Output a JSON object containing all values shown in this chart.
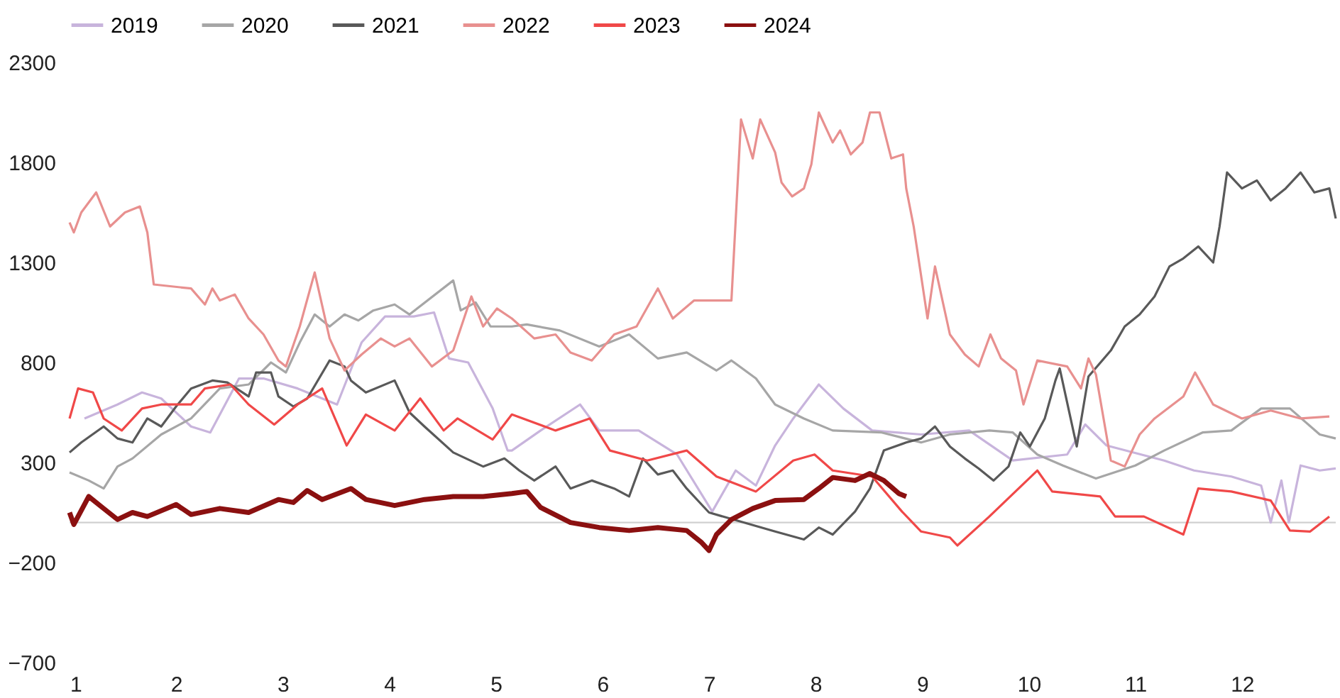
{
  "chart_data": {
    "type": "line",
    "xlim": [
      1,
      12.88
    ],
    "xticks": [
      1,
      2,
      3,
      4,
      5,
      6,
      7,
      8,
      9,
      10,
      11,
      12
    ],
    "ylim": [
      -700,
      2300
    ],
    "yticks": [
      -700,
      -200,
      300,
      800,
      1300,
      1800,
      2300
    ],
    "grid": false,
    "legend": "top",
    "line_style": "solid",
    "marker": "none",
    "ref_lines": [
      {
        "axis": "y",
        "value": 0,
        "color": "#d0d0d0"
      }
    ],
    "series": [
      {
        "name": "2019",
        "color": "#c8b4dc",
        "x": [
          1.14,
          1.45,
          1.68,
          1.86,
          2.14,
          2.32,
          2.59,
          2.82,
          3.14,
          3.51,
          3.74,
          3.96,
          4.23,
          4.42,
          4.56,
          4.74,
          4.97,
          5.11,
          5.15,
          5.42,
          5.79,
          5.97,
          6.34,
          6.7,
          7.03,
          7.25,
          7.44,
          7.62,
          7.79,
          8.03,
          8.26,
          8.53,
          8.99,
          9.44,
          9.85,
          10.36,
          10.53,
          10.73,
          11.27,
          11.55,
          11.9,
          12.18,
          12.27,
          12.37,
          12.44,
          12.55,
          12.73,
          12.88
        ],
        "values": [
          520,
          590,
          650,
          620,
          480,
          450,
          720,
          720,
          670,
          590,
          900,
          1030,
          1030,
          1050,
          820,
          800,
          570,
          360,
          360,
          460,
          590,
          460,
          460,
          340,
          55,
          260,
          185,
          385,
          520,
          690,
          570,
          460,
          440,
          460,
          310,
          340,
          490,
          385,
          310,
          260,
          230,
          185,
          0,
          210,
          0,
          285,
          260,
          270
        ]
      },
      {
        "name": "2020",
        "color": "#a6a6a6",
        "x": [
          1.0,
          1.18,
          1.32,
          1.45,
          1.59,
          1.86,
          2.14,
          2.41,
          2.68,
          2.89,
          3.03,
          3.16,
          3.3,
          3.44,
          3.58,
          3.71,
          3.85,
          4.05,
          4.19,
          4.6,
          4.67,
          4.81,
          4.95,
          5.15,
          5.29,
          5.6,
          5.97,
          6.25,
          6.52,
          6.79,
          7.07,
          7.21,
          7.44,
          7.62,
          7.89,
          8.16,
          8.62,
          8.99,
          9.26,
          9.63,
          9.85,
          10.08,
          10.32,
          10.63,
          11.0,
          11.27,
          11.63,
          11.9,
          12.18,
          12.45,
          12.73,
          12.88
        ],
        "values": [
          250,
          210,
          170,
          280,
          320,
          440,
          520,
          670,
          690,
          800,
          750,
          900,
          1040,
          980,
          1040,
          1010,
          1060,
          1090,
          1040,
          1210,
          1060,
          1100,
          980,
          980,
          990,
          960,
          880,
          940,
          820,
          850,
          760,
          810,
          720,
          590,
          520,
          460,
          450,
          400,
          440,
          460,
          450,
          340,
          285,
          220,
          285,
          360,
          450,
          460,
          570,
          570,
          440,
          420
        ]
      },
      {
        "name": "2021",
        "color": "#595959",
        "x": [
          1.0,
          1.11,
          1.32,
          1.45,
          1.59,
          1.73,
          1.86,
          2.0,
          2.14,
          2.34,
          2.48,
          2.68,
          2.75,
          2.89,
          2.96,
          3.1,
          3.23,
          3.44,
          3.58,
          3.64,
          3.78,
          4.05,
          4.19,
          4.33,
          4.6,
          4.88,
          5.08,
          5.22,
          5.36,
          5.56,
          5.7,
          5.9,
          6.11,
          6.25,
          6.38,
          6.52,
          6.66,
          6.79,
          6.93,
          7.0,
          7.62,
          7.89,
          8.03,
          8.16,
          8.37,
          8.51,
          8.64,
          8.85,
          8.99,
          9.12,
          9.26,
          9.4,
          9.53,
          9.67,
          9.81,
          9.92,
          10.01,
          10.15,
          10.25,
          10.29,
          10.45,
          10.56,
          10.77,
          10.9,
          11.04,
          11.18,
          11.32,
          11.45,
          11.59,
          11.73,
          11.79,
          11.86,
          12.0,
          12.14,
          12.27,
          12.41,
          12.55,
          12.68,
          12.82,
          12.88
        ],
        "values": [
          350,
          400,
          480,
          420,
          400,
          520,
          480,
          580,
          670,
          710,
          700,
          630,
          750,
          750,
          630,
          580,
          620,
          810,
          780,
          710,
          650,
          710,
          550,
          480,
          350,
          280,
          320,
          260,
          210,
          280,
          170,
          210,
          170,
          130,
          320,
          240,
          260,
          170,
          90,
          50,
          -45,
          -85,
          -25,
          -60,
          55,
          170,
          360,
          400,
          420,
          480,
          380,
          320,
          270,
          210,
          280,
          450,
          380,
          520,
          710,
          770,
          380,
          730,
          860,
          980,
          1040,
          1130,
          1280,
          1320,
          1380,
          1300,
          1480,
          1750,
          1670,
          1710,
          1610,
          1670,
          1750,
          1650,
          1670,
          1520
        ]
      },
      {
        "name": "2022",
        "color": "#e8908f",
        "x": [
          1.0,
          1.04,
          1.11,
          1.25,
          1.38,
          1.52,
          1.66,
          1.73,
          1.79,
          2.14,
          2.27,
          2.34,
          2.41,
          2.55,
          2.68,
          2.82,
          2.96,
          3.03,
          3.16,
          3.3,
          3.44,
          3.58,
          3.74,
          3.92,
          4.05,
          4.19,
          4.4,
          4.6,
          4.77,
          4.88,
          5.01,
          5.15,
          5.36,
          5.56,
          5.7,
          5.9,
          6.11,
          6.32,
          6.52,
          6.66,
          6.86,
          7.21,
          7.3,
          7.41,
          7.48,
          7.62,
          7.68,
          7.78,
          7.89,
          7.96,
          8.03,
          8.16,
          8.23,
          8.33,
          8.44,
          8.51,
          8.6,
          8.71,
          8.82,
          8.85,
          8.92,
          9.05,
          9.12,
          9.26,
          9.4,
          9.53,
          9.64,
          9.74,
          9.88,
          9.95,
          10.08,
          10.36,
          10.49,
          10.56,
          10.63,
          10.77,
          10.9,
          11.04,
          11.18,
          11.45,
          11.56,
          11.73,
          12.0,
          12.27,
          12.55,
          12.82
        ],
        "values": [
          1500,
          1450,
          1550,
          1650,
          1480,
          1550,
          1580,
          1450,
          1190,
          1170,
          1090,
          1170,
          1110,
          1140,
          1020,
          940,
          810,
          780,
          980,
          1250,
          920,
          760,
          840,
          920,
          880,
          920,
          780,
          860,
          1130,
          980,
          1070,
          1020,
          920,
          940,
          850,
          810,
          940,
          980,
          1170,
          1020,
          1110,
          1110,
          2015,
          1820,
          2015,
          1850,
          1700,
          1630,
          1670,
          1790,
          2050,
          1900,
          1960,
          1840,
          1900,
          2050,
          2050,
          1820,
          1840,
          1670,
          1480,
          1020,
          1280,
          940,
          840,
          780,
          940,
          820,
          760,
          590,
          810,
          780,
          670,
          820,
          740,
          310,
          280,
          440,
          520,
          630,
          750,
          590,
          520,
          560,
          520,
          530
        ]
      },
      {
        "name": "2023",
        "color": "#f04848",
        "x": [
          1.0,
          1.08,
          1.22,
          1.32,
          1.49,
          1.68,
          1.86,
          2.14,
          2.27,
          2.51,
          2.68,
          2.92,
          3.14,
          3.37,
          3.6,
          3.78,
          4.05,
          4.29,
          4.51,
          4.64,
          4.97,
          5.15,
          5.56,
          5.88,
          6.07,
          6.42,
          6.79,
          7.07,
          7.44,
          7.79,
          7.99,
          8.16,
          8.53,
          8.81,
          8.99,
          9.26,
          9.33,
          9.63,
          10.08,
          10.22,
          10.67,
          10.81,
          11.08,
          11.45,
          11.59,
          11.9,
          12.27,
          12.45,
          12.64,
          12.82
        ],
        "values": [
          520,
          670,
          650,
          520,
          460,
          570,
          590,
          590,
          670,
          690,
          590,
          490,
          590,
          670,
          385,
          540,
          460,
          620,
          460,
          520,
          415,
          540,
          460,
          520,
          360,
          310,
          360,
          230,
          155,
          310,
          340,
          260,
          230,
          55,
          -45,
          -75,
          -115,
          30,
          260,
          155,
          130,
          30,
          30,
          -60,
          170,
          155,
          110,
          -40,
          -45,
          30
        ]
      },
      {
        "name": "2024",
        "color": "#8b1010",
        "x": [
          1.0,
          1.04,
          1.18,
          1.32,
          1.45,
          1.59,
          1.73,
          2.0,
          2.14,
          2.41,
          2.68,
          2.96,
          3.1,
          3.23,
          3.37,
          3.64,
          3.78,
          4.05,
          4.33,
          4.6,
          4.88,
          5.15,
          5.29,
          5.42,
          5.7,
          5.97,
          6.25,
          6.52,
          6.79,
          6.93,
          7.0,
          7.07,
          7.21,
          7.41,
          7.62,
          7.89,
          8.03,
          8.16,
          8.37,
          8.51,
          8.64,
          8.78,
          8.85
        ],
        "values": [
          50,
          -10,
          130,
          70,
          15,
          50,
          30,
          90,
          40,
          70,
          50,
          115,
          100,
          160,
          115,
          170,
          115,
          85,
          115,
          130,
          130,
          145,
          155,
          75,
          0,
          -25,
          -40,
          -25,
          -40,
          -100,
          -140,
          -60,
          15,
          70,
          110,
          115,
          170,
          225,
          210,
          245,
          210,
          145,
          130
        ]
      }
    ]
  }
}
